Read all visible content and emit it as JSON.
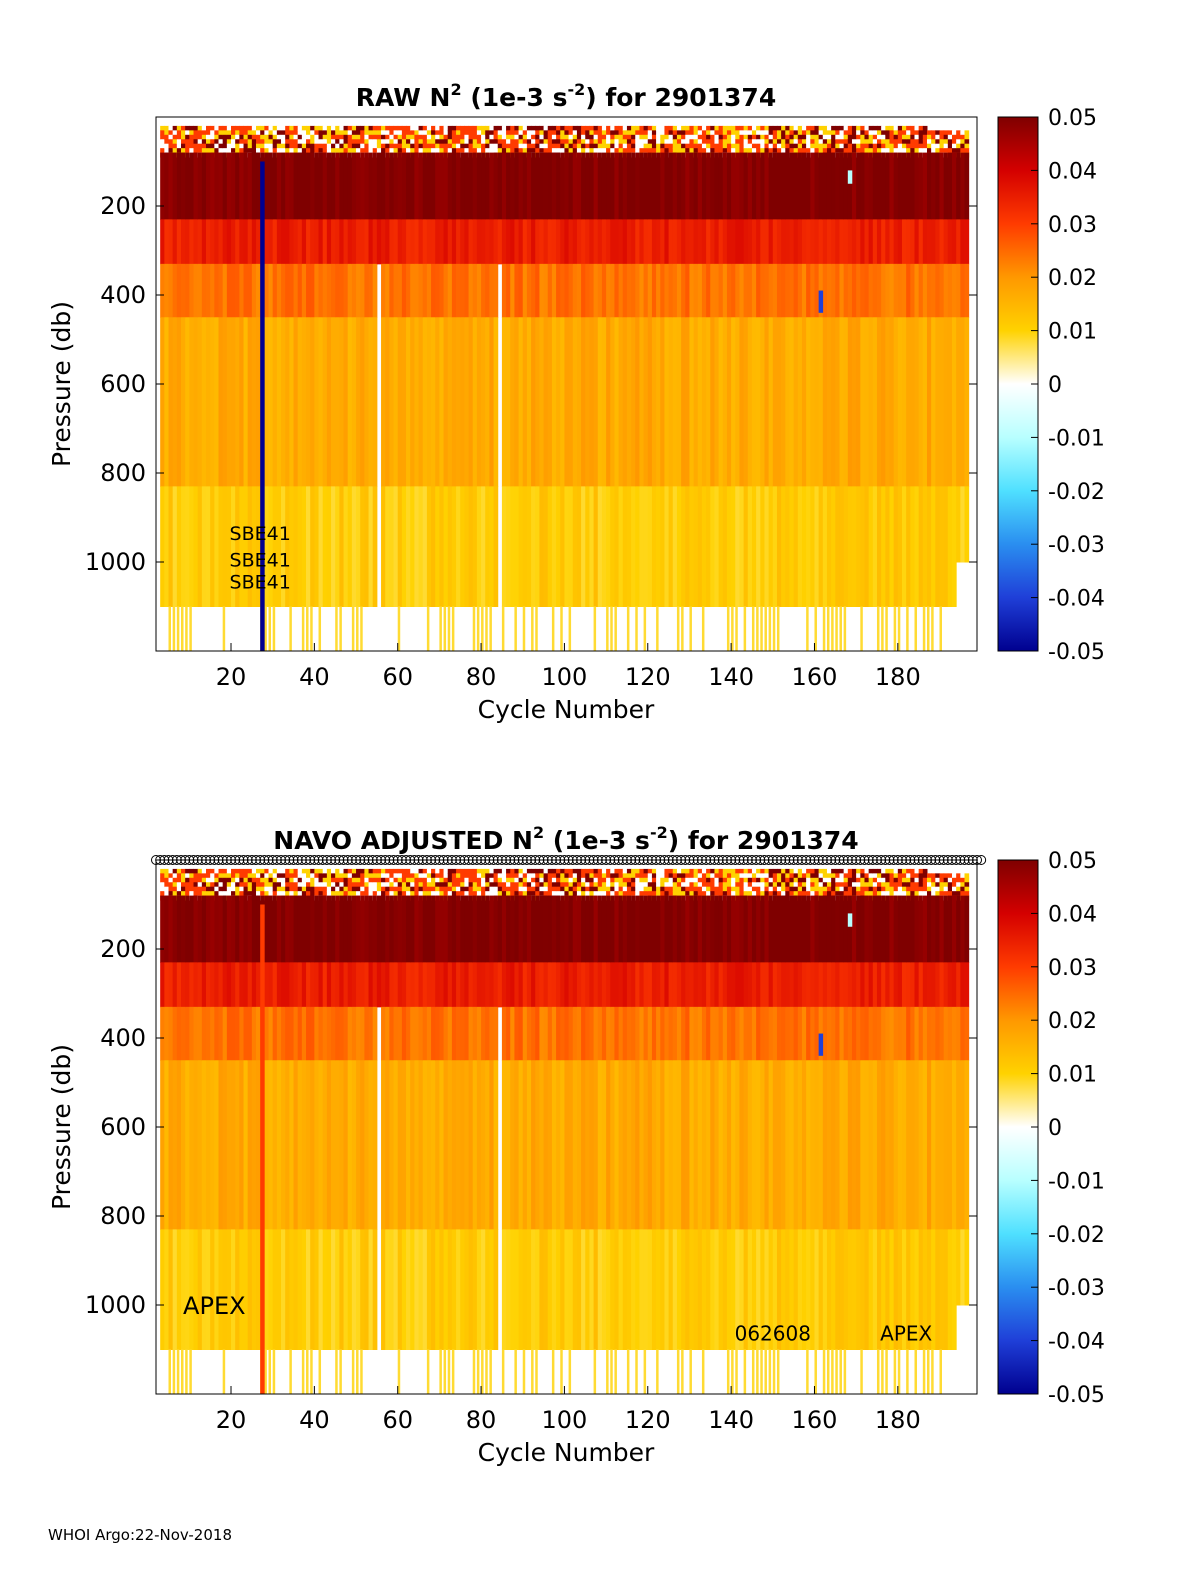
{
  "footer": "WHOI Argo:22-Nov-2018",
  "colormap": {
    "stops": [
      "#7f0000",
      "#d40000",
      "#ff3b00",
      "#ff9800",
      "#ffd200",
      "#ffffff",
      "#b8ffff",
      "#4fe0ff",
      "#2a8ef0",
      "#1f3fd8",
      "#00008f"
    ],
    "ticks": [
      "0.05",
      "0.04",
      "0.03",
      "0.02",
      "0.01",
      "0",
      "-0.01",
      "-0.02",
      "-0.03",
      "-0.04",
      "-0.05"
    ]
  },
  "chart_data": [
    {
      "type": "heatmap",
      "title": {
        "pre": "RAW N",
        "sup1": "2",
        "mid": " (1e-3 s",
        "sup2": "-2",
        "post": ") for 2901374"
      },
      "xlabel": "Cycle Number",
      "ylabel": "Pressure (db)",
      "xlim": [
        2,
        199
      ],
      "ylim": [
        1200,
        0
      ],
      "xticks": [
        "20",
        "40",
        "60",
        "80",
        "100",
        "120",
        "140",
        "160",
        "180"
      ],
      "yticks": [
        "200",
        "400",
        "600",
        "800",
        "1000"
      ],
      "clim": [
        -0.05,
        0.05
      ],
      "colorbar_ticks": [
        "0.05",
        "0.04",
        "0.03",
        "0.02",
        "0.01",
        "0",
        "-0.01",
        "-0.02",
        "-0.03",
        "-0.04",
        "-0.05"
      ],
      "value_bands": [
        {
          "p_range": [
            0,
            80
          ],
          "value": 0.004,
          "note": "near-surface mixed values"
        },
        {
          "p_range": [
            80,
            230
          ],
          "value": 0.05
        },
        {
          "p_range": [
            230,
            330
          ],
          "value": 0.035
        },
        {
          "p_range": [
            330,
            450
          ],
          "value": 0.024
        },
        {
          "p_range": [
            450,
            830
          ],
          "value": 0.017
        },
        {
          "p_range": [
            830,
            1100
          ],
          "value": 0.011
        }
      ],
      "anomalies": [
        {
          "cycle": 27,
          "p_range": [
            100,
            1200
          ],
          "value": -0.05
        },
        {
          "cycle": 161,
          "p_range": [
            390,
            440
          ],
          "value": -0.04
        },
        {
          "cycle": 168,
          "p_range": [
            120,
            150
          ],
          "value": -0.01
        }
      ],
      "annotations": [
        {
          "text": "SBE41",
          "cycle": 27,
          "pressure": 950
        },
        {
          "text": "SBE41",
          "cycle": 27,
          "pressure": 1010
        },
        {
          "text": "SBE41",
          "cycle": 27,
          "pressure": 1060
        }
      ]
    },
    {
      "type": "heatmap",
      "title": {
        "pre": "NAVO  ADJUSTED N",
        "sup1": "2",
        "mid": " (1e-3 s",
        "sup2": "-2",
        "post": ") for 2901374"
      },
      "xlabel": "Cycle Number",
      "ylabel": "Pressure (db)",
      "xlim": [
        2,
        199
      ],
      "ylim": [
        1200,
        0
      ],
      "xticks": [
        "20",
        "40",
        "60",
        "80",
        "100",
        "120",
        "140",
        "160",
        "180"
      ],
      "yticks": [
        "200",
        "400",
        "600",
        "800",
        "1000"
      ],
      "clim": [
        -0.05,
        0.05
      ],
      "colorbar_ticks": [
        "0.05",
        "0.04",
        "0.03",
        "0.02",
        "0.01",
        "0",
        "-0.01",
        "-0.02",
        "-0.03",
        "-0.04",
        "-0.05"
      ],
      "value_bands": [
        {
          "p_range": [
            0,
            80
          ],
          "value": 0.004,
          "note": "near-surface mixed values"
        },
        {
          "p_range": [
            80,
            230
          ],
          "value": 0.05
        },
        {
          "p_range": [
            230,
            330
          ],
          "value": 0.035
        },
        {
          "p_range": [
            330,
            450
          ],
          "value": 0.024
        },
        {
          "p_range": [
            450,
            830
          ],
          "value": 0.017
        },
        {
          "p_range": [
            830,
            1100
          ],
          "value": 0.011
        }
      ],
      "anomalies": [
        {
          "cycle": 27,
          "p_range": [
            100,
            1200
          ],
          "value": 0.03
        },
        {
          "cycle": 161,
          "p_range": [
            390,
            440
          ],
          "value": -0.04
        },
        {
          "cycle": 168,
          "p_range": [
            120,
            150
          ],
          "value": -0.01
        }
      ],
      "surface_markers": "open circles at the sea surface for every cycle",
      "annotations": [
        {
          "text": "APEX",
          "cycle": 16,
          "pressure": 1020
        },
        {
          "text": "062608",
          "cycle": 150,
          "pressure": 1080
        },
        {
          "text": "APEX",
          "cycle": 182,
          "pressure": 1080
        }
      ]
    }
  ]
}
